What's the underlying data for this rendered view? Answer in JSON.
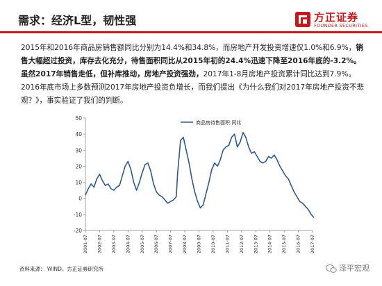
{
  "header": {
    "title": "需求：经济L型，韧性强",
    "logo_cn": "方正证券",
    "logo_en": "FOUNDER SECURITIES"
  },
  "paragraph": {
    "seg1": "2015年和2016年商品房销售额同比分别为14.4%和34.8%，而房地产开发投资增速仅1.0%和6.9%，",
    "seg2": "销售大幅超过投资，库存去化充分，待售面积同比从2015年初的24.4%迅速下降至2016年底的-3.2%。虽然2017年销售走低，但补库推动，房地产投资强劲，",
    "seg3": "2017年1-8月房地产投资累计同比达到7.9%。2016年底市场上多数预测2017年房地产投资负增长，而我们提出《为什么我们对2017年房地产投资不悲观？》，事实验证了我们的判断。"
  },
  "footer": {
    "source": "资料来源： WIND，方正证券研究所",
    "watermark": "泽平宏观"
  },
  "chart_data": {
    "type": "line",
    "title": "",
    "xlabel": "",
    "ylabel": "",
    "ylim": [
      -20,
      50
    ],
    "yticks": [
      -20,
      -10,
      0,
      10,
      20,
      30,
      40,
      50
    ],
    "xticks": [
      "2001-07",
      "2002-07",
      "2003-07",
      "2004-07",
      "2005-07",
      "2006-07",
      "2007-07",
      "2008-07",
      "2009-07",
      "2010-07",
      "2011-07",
      "2012-07",
      "2013-07",
      "2014-07",
      "2015-07",
      "2016-07",
      "2017-07"
    ],
    "series": [
      {
        "name": "商品房待售面积:同比",
        "x": [
          2001.5,
          2001.7,
          2001.9,
          2002.1,
          2002.3,
          2002.5,
          2002.7,
          2002.9,
          2003.1,
          2003.3,
          2003.5,
          2003.7,
          2003.9,
          2004.1,
          2004.3,
          2004.5,
          2004.7,
          2004.9,
          2005.1,
          2005.3,
          2005.5,
          2005.7,
          2005.9,
          2006.1,
          2006.3,
          2006.5,
          2006.7,
          2006.9,
          2007.1,
          2007.3,
          2007.5,
          2007.7,
          2007.9,
          2008.0,
          2008.2,
          2008.4,
          2008.6,
          2008.8,
          2009.0,
          2009.2,
          2009.4,
          2009.6,
          2009.8,
          2010.0,
          2010.2,
          2010.4,
          2010.6,
          2010.8,
          2011.0,
          2011.2,
          2011.4,
          2011.6,
          2011.8,
          2012.0,
          2012.2,
          2012.4,
          2012.6,
          2012.8,
          2013.0,
          2013.2,
          2013.4,
          2013.6,
          2013.8,
          2014.0,
          2014.2,
          2014.4,
          2014.6,
          2014.8,
          2015.0,
          2015.2,
          2015.4,
          2015.6,
          2015.8,
          2016.0,
          2016.2,
          2016.4,
          2016.6,
          2016.8,
          2017.0,
          2017.2,
          2017.4,
          2017.6
        ],
        "values": [
          2,
          6,
          9,
          7,
          12,
          15,
          11,
          8,
          9,
          6,
          5,
          7,
          8,
          14,
          20,
          23,
          18,
          10,
          5,
          10,
          16,
          21,
          22,
          17,
          9,
          4,
          2,
          1,
          -1,
          -3,
          -2,
          -1,
          1,
          16,
          36,
          38,
          30,
          22,
          12,
          4,
          -2,
          -6,
          -4,
          3,
          10,
          18,
          22,
          20,
          24,
          30,
          32,
          33,
          38,
          40,
          32,
          35,
          41,
          38,
          32,
          28,
          29,
          26,
          23,
          22,
          23,
          26,
          25,
          27,
          24,
          20,
          17,
          14,
          12,
          8,
          4,
          1,
          -2,
          -3,
          -5,
          -7,
          -10,
          -12
        ]
      }
    ]
  }
}
